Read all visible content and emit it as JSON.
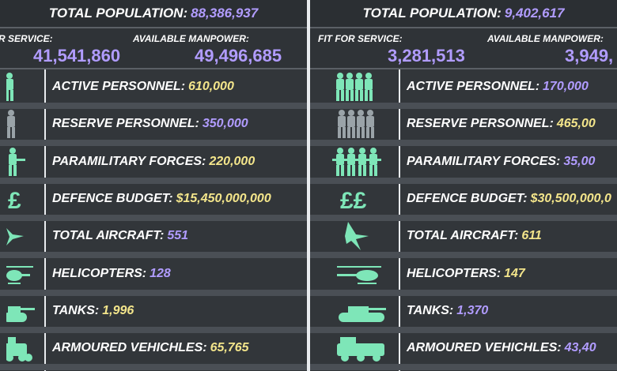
{
  "left": {
    "total_population_label": "TOTAL POPULATION:",
    "total_population_value": "88,386,937",
    "fit_label": "R SERVICE:",
    "fit_value": "41,541,860",
    "avail_label": "AVAILABLE MANPOWER:",
    "avail_value": "49,496,685",
    "rows": [
      {
        "label": "ACTIVE PERSONNEL:",
        "value": "610,000"
      },
      {
        "label": "RESERVE PERSONNEL:",
        "value": "350,000"
      },
      {
        "label": "PARAMILITARY FORCES:",
        "value": "220,000"
      },
      {
        "label": "DEFENCE BUDGET:",
        "value": "$15,450,000,000"
      },
      {
        "label": "TOTAL AIRCRAFT:",
        "value": "551"
      },
      {
        "label": "HELICOPTERS:",
        "value": "128"
      },
      {
        "label": "TANKS:",
        "value": "1,996"
      },
      {
        "label": "ARMOURED VEHICHLES:",
        "value": "65,765"
      }
    ]
  },
  "right": {
    "total_population_label": "TOTAL POPULATION:",
    "total_population_value": "9,402,617",
    "fit_label": "FIT FOR SERVICE:",
    "fit_value": "3,281,513",
    "avail_label": "AVAILABLE MANPOWER:",
    "avail_value": "3,949,",
    "rows": [
      {
        "label": "ACTIVE PERSONNEL:",
        "value": "170,000"
      },
      {
        "label": "RESERVE PERSONNEL:",
        "value": "465,00"
      },
      {
        "label": "PARAMILITARY FORCES:",
        "value": "35,00"
      },
      {
        "label": "DEFENCE BUDGET:",
        "value": "$30,500,000,0"
      },
      {
        "label": "TOTAL AIRCRAFT:",
        "value": "611"
      },
      {
        "label": "HELICOPTERS:",
        "value": "147"
      },
      {
        "label": "TANKS:",
        "value": "1,370"
      },
      {
        "label": "ARMOURED VEHICHLES:",
        "value": "43,40"
      }
    ]
  },
  "icons": [
    "soldiers-icon",
    "reserve-soldiers-icon",
    "armed-soldiers-icon",
    "pound-sign-icon",
    "jet-aircraft-icon",
    "helicopter-icon",
    "tank-icon",
    "armoured-vehicle-icon"
  ],
  "colors": {
    "accent_purple": "#b19cff",
    "accent_yellow": "#f3e58b",
    "icon_green": "#7ee6b8"
  }
}
